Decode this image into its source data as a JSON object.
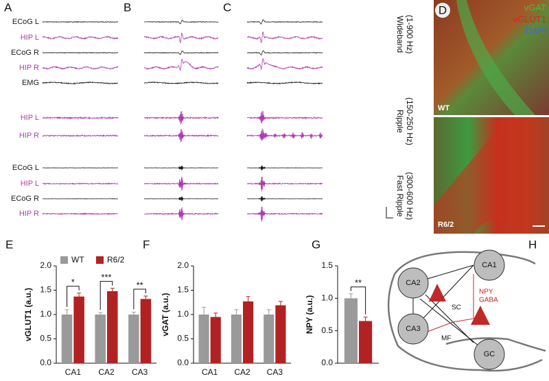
{
  "traces": {
    "panels": [
      "A",
      "B",
      "C"
    ],
    "rows": [
      {
        "label": "ECoG L",
        "color": "#1a1a1a"
      },
      {
        "label": "HIP L",
        "color": "#b03ab0"
      },
      {
        "label": "ECoG R",
        "color": "#1a1a1a"
      },
      {
        "label": "HIP R",
        "color": "#b03ab0"
      },
      {
        "label": "EMG",
        "color": "#1a1a1a"
      },
      {
        "label": "HIP L",
        "color": "#b03ab0"
      },
      {
        "label": "HIP R",
        "color": "#b03ab0"
      },
      {
        "label": "ECoG L",
        "color": "#1a1a1a"
      },
      {
        "label": "HIP L",
        "color": "#b03ab0"
      },
      {
        "label": "ECoG R",
        "color": "#1a1a1a"
      },
      {
        "label": "HIP R",
        "color": "#b03ab0"
      }
    ],
    "bands": [
      {
        "name": "Wideband",
        "range": "(1-900 Hz)"
      },
      {
        "name": "Ripple",
        "range": "(150-250 Hz)"
      },
      {
        "name": "Fast Ripple",
        "range": "(300-600 Hz)"
      }
    ]
  },
  "image": {
    "panel": "D",
    "stains": [
      {
        "label": "vGAT",
        "color": "#3ec43e"
      },
      {
        "label": "vGLUT1",
        "color": "#e02020"
      },
      {
        "label": "DAPI",
        "color": "#4a62e0"
      }
    ],
    "conditions": [
      "WT",
      "R6/2"
    ]
  },
  "chart_data": [
    {
      "type": "bar",
      "panel": "E",
      "ylabel": "vGLUT1 (a.u.)",
      "categories": [
        "CA1",
        "CA2",
        "CA3"
      ],
      "legend": "top-left",
      "series": [
        {
          "name": "WT",
          "color": "#9a9a9a",
          "values": [
            1.0,
            1.0,
            1.0
          ],
          "errors": [
            0.1,
            0.04,
            0.05
          ]
        },
        {
          "name": "R6/2",
          "color": "#b22222",
          "values": [
            1.37,
            1.48,
            1.32
          ],
          "errors": [
            0.07,
            0.06,
            0.06
          ]
        }
      ],
      "significance": [
        "*",
        "***",
        "**"
      ],
      "ylim": [
        0,
        2
      ],
      "yticks": [
        {
          "value": 0,
          "label": "0.0"
        },
        0.5,
        {
          "value": 1,
          "label": "1.0"
        },
        1.5,
        {
          "value": 2,
          "label": "2.0"
        }
      ]
    },
    {
      "type": "bar",
      "panel": "F",
      "ylabel": "vGAT (a.u.)",
      "categories": [
        "CA1",
        "CA2",
        "CA3"
      ],
      "series": [
        {
          "color": "#9a9a9a",
          "values": [
            1.0,
            1.0,
            1.0
          ],
          "errors": [
            0.15,
            0.1,
            0.1
          ]
        },
        {
          "color": "#b22222",
          "values": [
            0.95,
            1.27,
            1.19
          ],
          "errors": [
            0.08,
            0.1,
            0.08
          ]
        }
      ],
      "ylim": [
        0,
        2
      ],
      "yticks": [
        {
          "value": 0,
          "label": "0.0"
        },
        0.5,
        {
          "value": 1,
          "label": "1.0"
        },
        1.5,
        {
          "value": 2,
          "label": "2.0"
        }
      ]
    },
    {
      "type": "bar",
      "panel": "G",
      "ylabel": "NPY (a.u.)",
      "categories": [
        null
      ],
      "series": [
        {
          "color": "#9a9a9a",
          "values": [
            1.0
          ],
          "errors": [
            0.07
          ]
        },
        {
          "color": "#b22222",
          "values": [
            0.65
          ],
          "errors": [
            0.06
          ]
        }
      ],
      "significance": [
        "**"
      ],
      "ylim": [
        0,
        1.5
      ],
      "yticks": [
        {
          "value": 0,
          "label": "0.0"
        },
        0.5,
        {
          "value": 1,
          "label": "1.0"
        },
        1.5
      ]
    }
  ],
  "diagram": {
    "panel": "H",
    "nodes": [
      "CA1",
      "CA2",
      "CA3",
      "GC"
    ],
    "pathways": [
      "SC",
      "MF"
    ],
    "transmitter": [
      "NPY",
      "GABA"
    ]
  }
}
